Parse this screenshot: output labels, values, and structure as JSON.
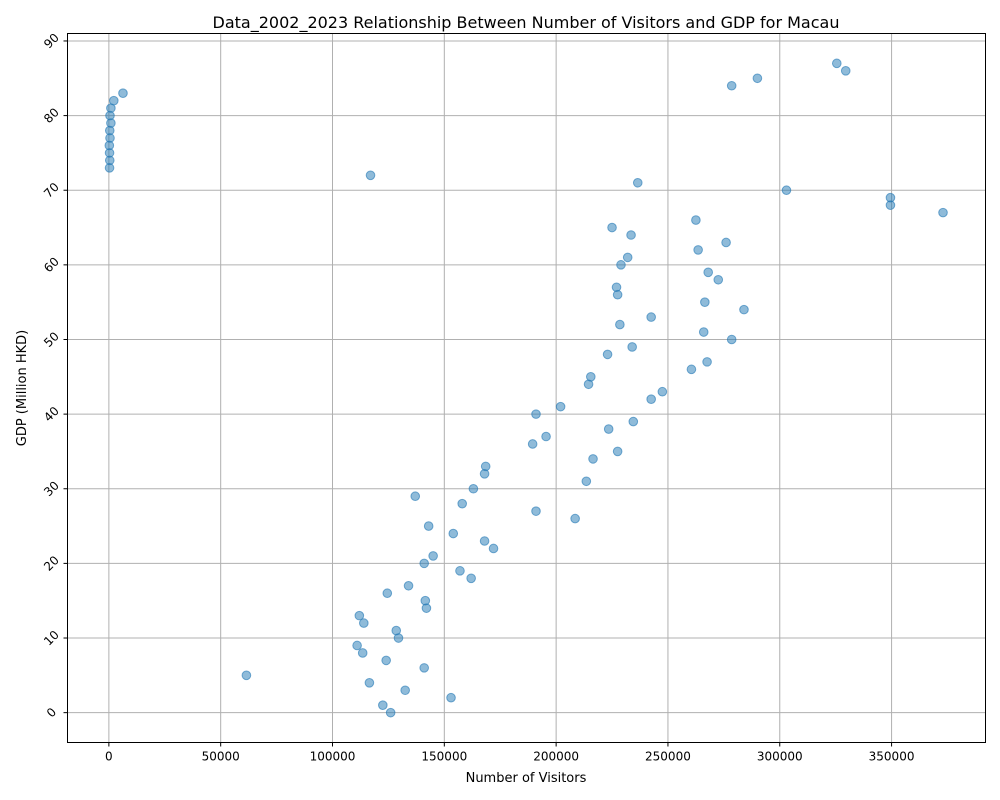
{
  "chart_data": {
    "type": "scatter",
    "title": "Data_2002_2023 Relationship Between Number of Visitors and GDP for Macau",
    "xlabel": "Number of Visitors",
    "ylabel": "GDP (Million HKD)",
    "xlim": [
      -18500,
      392000
    ],
    "ylim": [
      -4,
      91
    ],
    "xticks": [
      0,
      50000,
      100000,
      150000,
      200000,
      250000,
      300000,
      350000
    ],
    "yticks": [
      0,
      10,
      20,
      30,
      40,
      50,
      60,
      70,
      80,
      90
    ],
    "grid": true,
    "color": "#1f77b4",
    "points": [
      [
        126000,
        0
      ],
      [
        122500,
        1
      ],
      [
        153000,
        2
      ],
      [
        132500,
        3
      ],
      [
        116500,
        4
      ],
      [
        61500,
        5
      ],
      [
        141000,
        6
      ],
      [
        124000,
        7
      ],
      [
        113500,
        8
      ],
      [
        111000,
        9
      ],
      [
        129500,
        10
      ],
      [
        128500,
        11
      ],
      [
        114000,
        12
      ],
      [
        112000,
        13
      ],
      [
        142000,
        14
      ],
      [
        141500,
        15
      ],
      [
        124500,
        16
      ],
      [
        134000,
        17
      ],
      [
        162000,
        18
      ],
      [
        157000,
        19
      ],
      [
        141000,
        20
      ],
      [
        145000,
        21
      ],
      [
        172000,
        22
      ],
      [
        168000,
        23
      ],
      [
        154000,
        24
      ],
      [
        143000,
        25
      ],
      [
        208500,
        26
      ],
      [
        191000,
        27
      ],
      [
        158000,
        28
      ],
      [
        137000,
        29
      ],
      [
        163000,
        30
      ],
      [
        213500,
        31
      ],
      [
        168000,
        32
      ],
      [
        168500,
        33
      ],
      [
        216500,
        34
      ],
      [
        227500,
        35
      ],
      [
        189500,
        36
      ],
      [
        195500,
        37
      ],
      [
        223500,
        38
      ],
      [
        234500,
        39
      ],
      [
        191000,
        40
      ],
      [
        202000,
        41
      ],
      [
        242500,
        42
      ],
      [
        247500,
        43
      ],
      [
        214500,
        44
      ],
      [
        215500,
        45
      ],
      [
        260500,
        46
      ],
      [
        267500,
        47
      ],
      [
        223000,
        48
      ],
      [
        234000,
        49
      ],
      [
        278500,
        50
      ],
      [
        266000,
        51
      ],
      [
        228500,
        52
      ],
      [
        242500,
        53
      ],
      [
        284000,
        54
      ],
      [
        266500,
        55
      ],
      [
        227500,
        56
      ],
      [
        227000,
        57
      ],
      [
        272500,
        58
      ],
      [
        268000,
        59
      ],
      [
        229000,
        60
      ],
      [
        232000,
        61
      ],
      [
        263500,
        62
      ],
      [
        276000,
        63
      ],
      [
        233500,
        64
      ],
      [
        225000,
        65
      ],
      [
        262500,
        66
      ],
      [
        373000,
        67
      ],
      [
        349500,
        68
      ],
      [
        349500,
        69
      ],
      [
        303000,
        70
      ],
      [
        236500,
        71
      ],
      [
        117000,
        72
      ],
      [
        300,
        73
      ],
      [
        400,
        74
      ],
      [
        300,
        75
      ],
      [
        200,
        76
      ],
      [
        500,
        77
      ],
      [
        400,
        78
      ],
      [
        900,
        79
      ],
      [
        500,
        80
      ],
      [
        900,
        81
      ],
      [
        2200,
        82
      ],
      [
        6300,
        83
      ],
      [
        278500,
        84
      ],
      [
        290000,
        85
      ],
      [
        329500,
        86
      ],
      [
        325500,
        87
      ]
    ]
  }
}
